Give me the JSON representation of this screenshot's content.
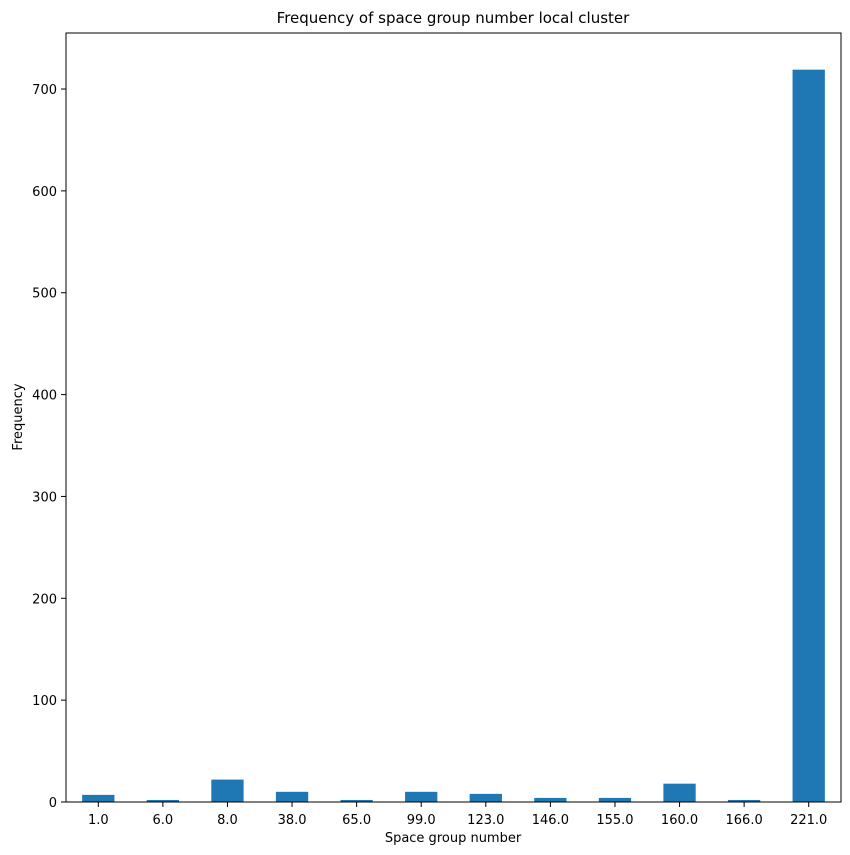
{
  "chart_data": {
    "type": "bar",
    "title": "Frequency of space group number local cluster",
    "xlabel": "Space group number",
    "ylabel": "Frequency",
    "categories": [
      "1.0",
      "6.0",
      "8.0",
      "38.0",
      "65.0",
      "99.0",
      "123.0",
      "146.0",
      "155.0",
      "160.0",
      "166.0",
      "221.0"
    ],
    "values": [
      7,
      2,
      22,
      10,
      2,
      10,
      8,
      4,
      4,
      18,
      2,
      719
    ],
    "ylim": [
      0,
      755
    ],
    "yticks": [
      0,
      100,
      200,
      300,
      400,
      500,
      600,
      700
    ],
    "grid": false,
    "legend": "none",
    "bar_color": "#1f77b4"
  }
}
